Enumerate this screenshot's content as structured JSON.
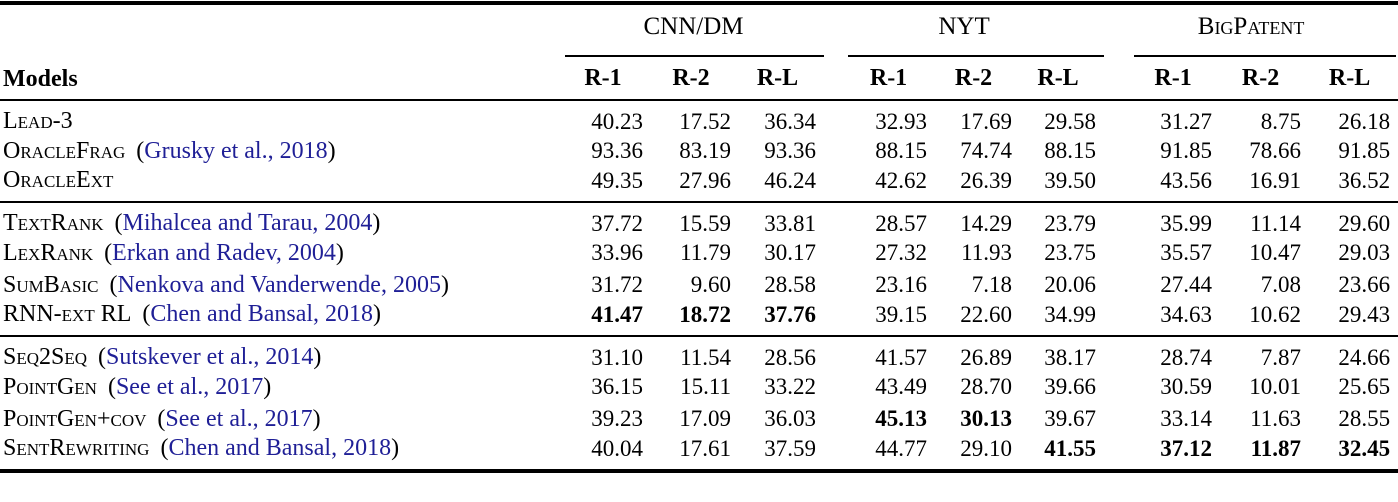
{
  "colors": {
    "text": "#000000",
    "citation_link": "#1f1f96",
    "rule": "#000000",
    "background": "#ffffff"
  },
  "table": {
    "corner_label": "Models",
    "groups": [
      {
        "label": "CNN/DM",
        "smallcaps": false
      },
      {
        "label": "NYT",
        "smallcaps": false
      },
      {
        "label": "BigPatent",
        "smallcaps": true
      }
    ],
    "metrics": [
      "R-1",
      "R-2",
      "R-L",
      "R-1",
      "R-2",
      "R-L",
      "R-1",
      "R-2",
      "R-L"
    ],
    "sections": [
      {
        "rows": [
          {
            "model": "Lead-3",
            "citation": null,
            "values": [
              "40.23",
              "17.52",
              "36.34",
              "32.93",
              "17.69",
              "29.58",
              "31.27",
              "8.75",
              "26.18"
            ],
            "bold": []
          },
          {
            "model": "OracleFrag",
            "citation": "Grusky et al., 2018",
            "values": [
              "93.36",
              "83.19",
              "93.36",
              "88.15",
              "74.74",
              "88.15",
              "91.85",
              "78.66",
              "91.85"
            ],
            "bold": []
          },
          {
            "model": "OracleExt",
            "citation": null,
            "values": [
              "49.35",
              "27.96",
              "46.24",
              "42.62",
              "26.39",
              "39.50",
              "43.56",
              "16.91",
              "36.52"
            ],
            "bold": []
          }
        ]
      },
      {
        "rows": [
          {
            "model": "TextRank",
            "citation": "Mihalcea and Tarau, 2004",
            "values": [
              "37.72",
              "15.59",
              "33.81",
              "28.57",
              "14.29",
              "23.79",
              "35.99",
              "11.14",
              "29.60"
            ],
            "bold": []
          },
          {
            "model": "LexRank",
            "citation": "Erkan and Radev, 2004",
            "values": [
              "33.96",
              "11.79",
              "30.17",
              "27.32",
              "11.93",
              "23.75",
              "35.57",
              "10.47",
              "29.03"
            ],
            "bold": []
          },
          {
            "model": "SumBasic",
            "citation": "Nenkova and Vanderwende, 2005",
            "values": [
              "31.72",
              "9.60",
              "28.58",
              "23.16",
              "7.18",
              "20.06",
              "27.44",
              "7.08",
              "23.66"
            ],
            "bold": []
          },
          {
            "model": "RNN-ext RL",
            "citation": "Chen and Bansal, 2018",
            "values": [
              "41.47",
              "18.72",
              "37.76",
              "39.15",
              "22.60",
              "34.99",
              "34.63",
              "10.62",
              "29.43"
            ],
            "bold": [
              0,
              1,
              2
            ]
          }
        ]
      },
      {
        "rows": [
          {
            "model": "Seq2Seq",
            "citation": "Sutskever et al., 2014",
            "values": [
              "31.10",
              "11.54",
              "28.56",
              "41.57",
              "26.89",
              "38.17",
              "28.74",
              "7.87",
              "24.66"
            ],
            "bold": []
          },
          {
            "model": "PointGen",
            "citation": "See et al., 2017",
            "values": [
              "36.15",
              "15.11",
              "33.22",
              "43.49",
              "28.70",
              "39.66",
              "30.59",
              "10.01",
              "25.65"
            ],
            "bold": []
          },
          {
            "model": "PointGen+cov",
            "citation": "See et al., 2017",
            "values": [
              "39.23",
              "17.09",
              "36.03",
              "45.13",
              "30.13",
              "39.67",
              "33.14",
              "11.63",
              "28.55"
            ],
            "bold": [
              3,
              4
            ]
          },
          {
            "model": "SentRewriting",
            "citation": "Chen and Bansal, 2018",
            "values": [
              "40.04",
              "17.61",
              "37.59",
              "44.77",
              "29.10",
              "41.55",
              "37.12",
              "11.87",
              "32.45"
            ],
            "bold": [
              5,
              6,
              7,
              8
            ]
          }
        ]
      }
    ]
  }
}
